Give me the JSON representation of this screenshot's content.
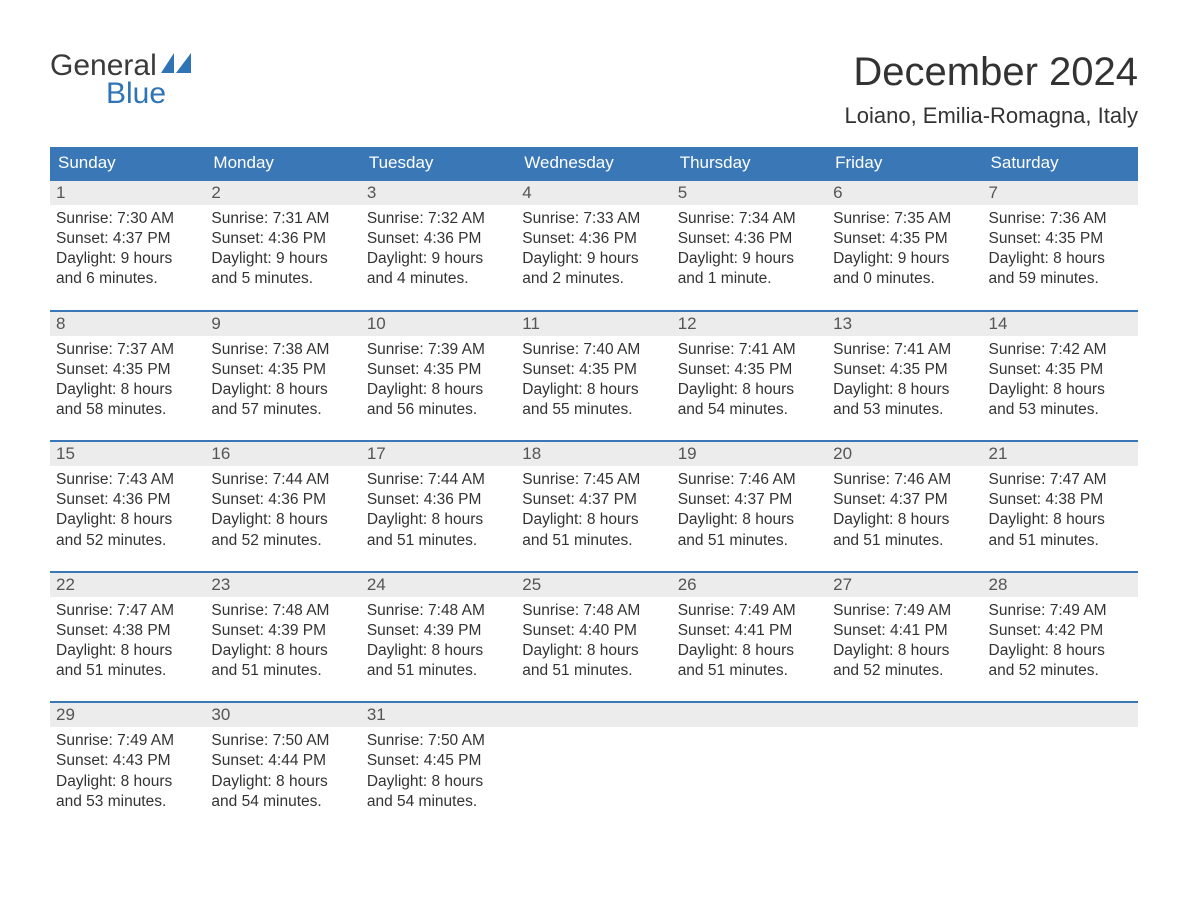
{
  "brand": {
    "word1": "General",
    "word2": "Blue",
    "accent_color": "#2f74b5"
  },
  "title": "December 2024",
  "location": "Loiano, Emilia-Romagna, Italy",
  "colors": {
    "header_bg": "#3a77b7",
    "header_text": "#ffffff",
    "daynum_bg": "#ececec",
    "rule": "#3a77b7",
    "text": "#333333",
    "background": "#ffffff"
  },
  "days_of_week": [
    "Sunday",
    "Monday",
    "Tuesday",
    "Wednesday",
    "Thursday",
    "Friday",
    "Saturday"
  ],
  "weeks": [
    [
      {
        "n": "1",
        "sunrise": "7:30 AM",
        "sunset": "4:37 PM",
        "dl1": "9 hours",
        "dl2": "and 6 minutes."
      },
      {
        "n": "2",
        "sunrise": "7:31 AM",
        "sunset": "4:36 PM",
        "dl1": "9 hours",
        "dl2": "and 5 minutes."
      },
      {
        "n": "3",
        "sunrise": "7:32 AM",
        "sunset": "4:36 PM",
        "dl1": "9 hours",
        "dl2": "and 4 minutes."
      },
      {
        "n": "4",
        "sunrise": "7:33 AM",
        "sunset": "4:36 PM",
        "dl1": "9 hours",
        "dl2": "and 2 minutes."
      },
      {
        "n": "5",
        "sunrise": "7:34 AM",
        "sunset": "4:36 PM",
        "dl1": "9 hours",
        "dl2": "and 1 minute."
      },
      {
        "n": "6",
        "sunrise": "7:35 AM",
        "sunset": "4:35 PM",
        "dl1": "9 hours",
        "dl2": "and 0 minutes."
      },
      {
        "n": "7",
        "sunrise": "7:36 AM",
        "sunset": "4:35 PM",
        "dl1": "8 hours",
        "dl2": "and 59 minutes."
      }
    ],
    [
      {
        "n": "8",
        "sunrise": "7:37 AM",
        "sunset": "4:35 PM",
        "dl1": "8 hours",
        "dl2": "and 58 minutes."
      },
      {
        "n": "9",
        "sunrise": "7:38 AM",
        "sunset": "4:35 PM",
        "dl1": "8 hours",
        "dl2": "and 57 minutes."
      },
      {
        "n": "10",
        "sunrise": "7:39 AM",
        "sunset": "4:35 PM",
        "dl1": "8 hours",
        "dl2": "and 56 minutes."
      },
      {
        "n": "11",
        "sunrise": "7:40 AM",
        "sunset": "4:35 PM",
        "dl1": "8 hours",
        "dl2": "and 55 minutes."
      },
      {
        "n": "12",
        "sunrise": "7:41 AM",
        "sunset": "4:35 PM",
        "dl1": "8 hours",
        "dl2": "and 54 minutes."
      },
      {
        "n": "13",
        "sunrise": "7:41 AM",
        "sunset": "4:35 PM",
        "dl1": "8 hours",
        "dl2": "and 53 minutes."
      },
      {
        "n": "14",
        "sunrise": "7:42 AM",
        "sunset": "4:35 PM",
        "dl1": "8 hours",
        "dl2": "and 53 minutes."
      }
    ],
    [
      {
        "n": "15",
        "sunrise": "7:43 AM",
        "sunset": "4:36 PM",
        "dl1": "8 hours",
        "dl2": "and 52 minutes."
      },
      {
        "n": "16",
        "sunrise": "7:44 AM",
        "sunset": "4:36 PM",
        "dl1": "8 hours",
        "dl2": "and 52 minutes."
      },
      {
        "n": "17",
        "sunrise": "7:44 AM",
        "sunset": "4:36 PM",
        "dl1": "8 hours",
        "dl2": "and 51 minutes."
      },
      {
        "n": "18",
        "sunrise": "7:45 AM",
        "sunset": "4:37 PM",
        "dl1": "8 hours",
        "dl2": "and 51 minutes."
      },
      {
        "n": "19",
        "sunrise": "7:46 AM",
        "sunset": "4:37 PM",
        "dl1": "8 hours",
        "dl2": "and 51 minutes."
      },
      {
        "n": "20",
        "sunrise": "7:46 AM",
        "sunset": "4:37 PM",
        "dl1": "8 hours",
        "dl2": "and 51 minutes."
      },
      {
        "n": "21",
        "sunrise": "7:47 AM",
        "sunset": "4:38 PM",
        "dl1": "8 hours",
        "dl2": "and 51 minutes."
      }
    ],
    [
      {
        "n": "22",
        "sunrise": "7:47 AM",
        "sunset": "4:38 PM",
        "dl1": "8 hours",
        "dl2": "and 51 minutes."
      },
      {
        "n": "23",
        "sunrise": "7:48 AM",
        "sunset": "4:39 PM",
        "dl1": "8 hours",
        "dl2": "and 51 minutes."
      },
      {
        "n": "24",
        "sunrise": "7:48 AM",
        "sunset": "4:39 PM",
        "dl1": "8 hours",
        "dl2": "and 51 minutes."
      },
      {
        "n": "25",
        "sunrise": "7:48 AM",
        "sunset": "4:40 PM",
        "dl1": "8 hours",
        "dl2": "and 51 minutes."
      },
      {
        "n": "26",
        "sunrise": "7:49 AM",
        "sunset": "4:41 PM",
        "dl1": "8 hours",
        "dl2": "and 51 minutes."
      },
      {
        "n": "27",
        "sunrise": "7:49 AM",
        "sunset": "4:41 PM",
        "dl1": "8 hours",
        "dl2": "and 52 minutes."
      },
      {
        "n": "28",
        "sunrise": "7:49 AM",
        "sunset": "4:42 PM",
        "dl1": "8 hours",
        "dl2": "and 52 minutes."
      }
    ],
    [
      {
        "n": "29",
        "sunrise": "7:49 AM",
        "sunset": "4:43 PM",
        "dl1": "8 hours",
        "dl2": "and 53 minutes."
      },
      {
        "n": "30",
        "sunrise": "7:50 AM",
        "sunset": "4:44 PM",
        "dl1": "8 hours",
        "dl2": "and 54 minutes."
      },
      {
        "n": "31",
        "sunrise": "7:50 AM",
        "sunset": "4:45 PM",
        "dl1": "8 hours",
        "dl2": "and 54 minutes."
      },
      null,
      null,
      null,
      null
    ]
  ],
  "labels": {
    "sunrise_prefix": "Sunrise: ",
    "sunset_prefix": "Sunset: ",
    "daylight_prefix": "Daylight: "
  }
}
